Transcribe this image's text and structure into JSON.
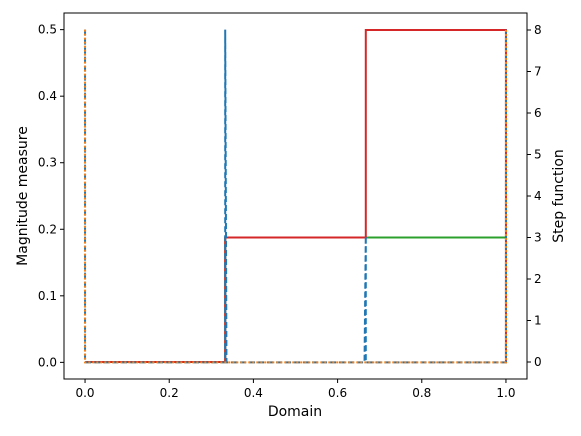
{
  "chart_data": {
    "type": "line",
    "xlabel": "Domain",
    "ylabel": "Magnitude measure",
    "y2label": "Step function",
    "xlim": [
      -0.05,
      1.05
    ],
    "xticks": [
      {
        "value": 0,
        "label": "0.0"
      },
      0.2,
      0.4,
      0.6,
      0.8,
      {
        "value": 1,
        "label": "1.0"
      }
    ],
    "ylim": [
      -0.025,
      0.525
    ],
    "yticks": [
      {
        "value": 0,
        "label": "0.0"
      },
      0.1,
      0.2,
      0.3,
      0.4,
      0.5
    ],
    "y2lim": [
      -0.41,
      8.41
    ],
    "y2ticks": [
      0,
      1,
      2,
      3,
      4,
      5,
      6,
      7,
      8
    ],
    "series": [
      {
        "color": "#2ca02c",
        "style": "solid",
        "axis": "y2",
        "x": [
          0,
          0.333,
          0.333,
          1
        ],
        "values": [
          0,
          0,
          3,
          3
        ]
      },
      {
        "color": "#d62728",
        "style": "solid",
        "axis": "y2",
        "x": [
          0,
          0.333,
          0.333,
          0.667,
          0.667,
          1,
          1
        ],
        "values": [
          0,
          0,
          3,
          3,
          8,
          8,
          0
        ]
      },
      {
        "color": "#1f77b4",
        "style": "dashed",
        "x": [
          0,
          0,
          0.333,
          0.333,
          0.336,
          0.664,
          0.667,
          0.667,
          1,
          1
        ],
        "values": [
          0.5,
          0,
          0,
          0.5,
          0,
          0,
          0.19,
          0,
          0,
          0.5
        ]
      },
      {
        "color": "#ff7f0e",
        "style": "dotted",
        "x": [
          0,
          0,
          1,
          1
        ],
        "values": [
          0.5,
          0,
          0,
          0.5
        ]
      }
    ]
  }
}
